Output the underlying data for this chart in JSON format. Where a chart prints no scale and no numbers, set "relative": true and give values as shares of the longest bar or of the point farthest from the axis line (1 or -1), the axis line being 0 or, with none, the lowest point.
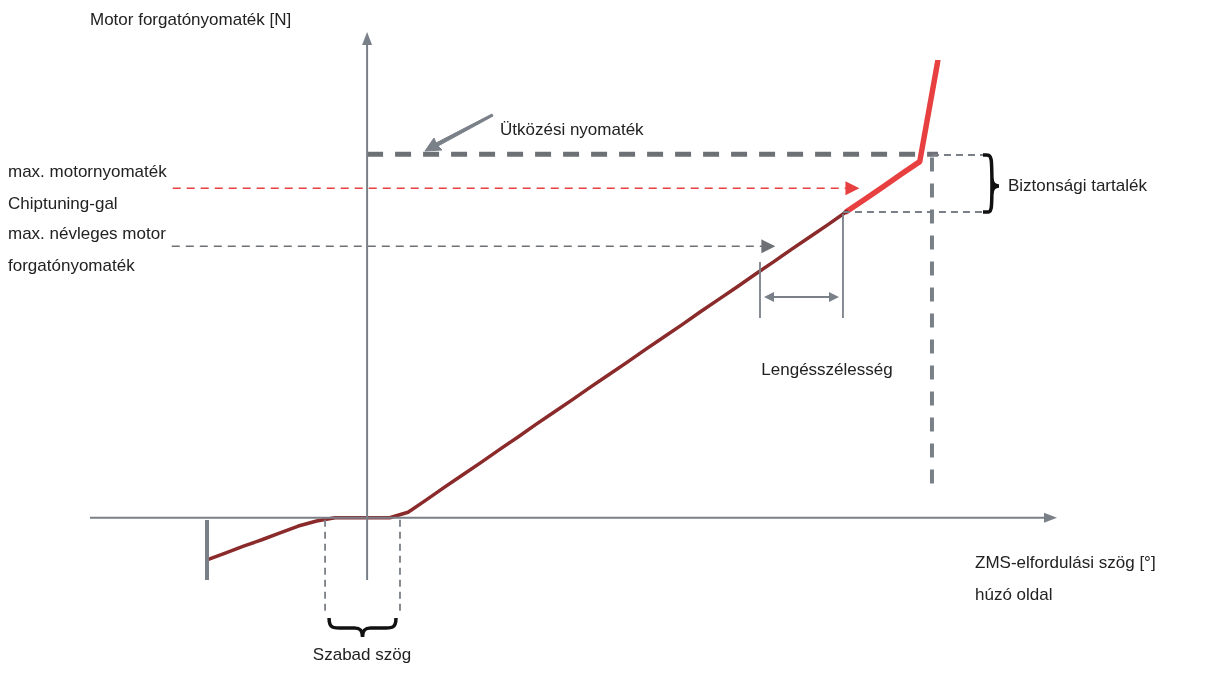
{
  "chart_data": {
    "type": "line",
    "relative": true,
    "ylabel": "Motor forgatónyomaték [N]",
    "xlabel": "ZMS-elfordulási szög [°] húzó oldal",
    "categories": [
      null,
      null,
      null,
      null,
      null,
      null,
      null,
      null,
      null,
      null,
      null,
      null,
      null,
      null,
      null,
      null,
      null,
      null,
      null,
      null,
      null,
      null,
      null,
      null,
      null,
      null,
      null,
      null,
      null,
      null,
      null,
      null,
      null,
      null,
      null,
      null,
      null,
      null,
      null,
      null,
      null
    ],
    "series": [
      {
        "color": "#8b2a2a",
        "values": [
          -0.092,
          -0.077,
          -0.062,
          -0.048,
          -0.033,
          -0.018,
          -0.007,
          0,
          0,
          0,
          0,
          0.012,
          0.039,
          0.067,
          0.094,
          0.121,
          0.149,
          0.176,
          0.204,
          0.231,
          0.258,
          0.286,
          0.313,
          0.34,
          0.368,
          0.395,
          0.422,
          0.45,
          0.477,
          0.504,
          0.532,
          0.559,
          0.587,
          0.614,
          0.641,
          0.669,
          null,
          null,
          null,
          null,
          null
        ]
      },
      {
        "color": "#e84040",
        "values": [
          null,
          null,
          null,
          null,
          null,
          null,
          null,
          null,
          null,
          null,
          null,
          null,
          null,
          null,
          null,
          null,
          null,
          null,
          null,
          null,
          null,
          null,
          null,
          null,
          null,
          null,
          null,
          null,
          null,
          null,
          null,
          null,
          null,
          null,
          null,
          0.669,
          0.696,
          0.723,
          0.751,
          0.778,
          1.0
        ]
      }
    ],
    "ref_lines": [
      {
        "axis": "y",
        "value": 0.794,
        "label": "Ütközési nyomaték",
        "color": "#6d7175",
        "line_style": "dashed"
      },
      {
        "axis": "y",
        "value": 0.72,
        "label": "max. motornyomaték Chiptuning-gal",
        "color": "#e84040",
        "line_style": "dashed"
      },
      {
        "axis": "y",
        "value": 0.593,
        "label": "max. névleges motor forgatónyomaték",
        "color": "#6d7175",
        "line_style": "dashed"
      }
    ],
    "annotations": [
      "Lengésszélesség",
      "Szabad szög",
      "Biztonsági tartalék"
    ],
    "legend": false,
    "marker": "none",
    "line_style": "solid"
  }
}
